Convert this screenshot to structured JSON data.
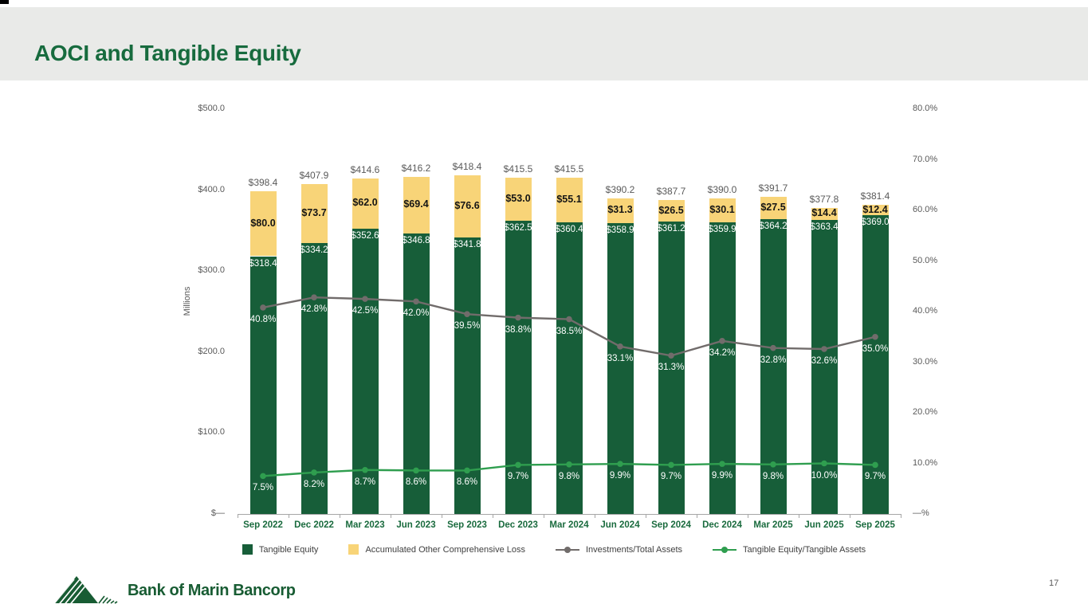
{
  "slide": {
    "title": "AOCI and Tangible Equity",
    "page_number": "17",
    "logo_text": "Bank of Marin Bancorp"
  },
  "colors": {
    "header_bg": "#e9eae8",
    "title_green": "#176b3e",
    "bar_green": "#175e39",
    "bar_yellow": "#f8d478",
    "line_gray": "#716c6b",
    "line_green": "#2f9e4f",
    "axis_text": "#595959",
    "x_label_green": "#1a6b3e"
  },
  "chart_data": {
    "type": "combo: stacked bar (left $ axis) + two lines (right % axis)",
    "categories": [
      "Sep 2022",
      "Dec 2022",
      "Mar 2023",
      "Jun 2023",
      "Sep 2023",
      "Dec 2023",
      "Mar 2024",
      "Jun 2024",
      "Sep 2024",
      "Dec 2024",
      "Mar 2025",
      "Jun 2025",
      "Sep 2025"
    ],
    "series": [
      {
        "name": "Tangible Equity",
        "type": "bar-stack-bottom",
        "axis": "left",
        "color": "#175e39",
        "values": [
          318.4,
          334.2,
          352.6,
          346.8,
          341.8,
          362.5,
          360.4,
          358.9,
          361.2,
          359.9,
          364.2,
          363.4,
          369.0
        ]
      },
      {
        "name": "Accumulated Other Comprehensive Loss",
        "type": "bar-stack-top",
        "axis": "left",
        "color": "#f8d478",
        "values": [
          80.0,
          73.7,
          62.0,
          69.4,
          76.6,
          53.0,
          55.1,
          31.3,
          26.5,
          30.1,
          27.5,
          14.4,
          12.4
        ]
      },
      {
        "name": "Investments/Total Assets",
        "type": "line",
        "axis": "right",
        "color": "#716c6b",
        "values": [
          40.8,
          42.8,
          42.5,
          42.0,
          39.5,
          38.8,
          38.5,
          33.1,
          31.3,
          34.2,
          32.8,
          32.6,
          35.0
        ]
      },
      {
        "name": "Tangible Equity/Tangible Assets",
        "type": "line",
        "axis": "right",
        "color": "#2f9e4f",
        "values": [
          7.5,
          8.2,
          8.7,
          8.6,
          8.6,
          9.7,
          9.8,
          9.9,
          9.7,
          9.9,
          9.8,
          10.0,
          9.7
        ]
      }
    ],
    "stack_totals": [
      398.4,
      407.9,
      414.6,
      416.2,
      418.4,
      415.5,
      415.5,
      390.2,
      387.7,
      390.0,
      391.7,
      377.8,
      381.4
    ],
    "left_axis": {
      "label": "Millions",
      "ticks": [
        "$500.0",
        "$400.0",
        "$300.0",
        "$200.0",
        "$100.0",
        "$—"
      ],
      "tick_values": [
        500,
        400,
        300,
        200,
        100,
        0
      ],
      "range": [
        0,
        500
      ]
    },
    "right_axis": {
      "ticks": [
        "80.0%",
        "70.0%",
        "60.0%",
        "50.0%",
        "40.0%",
        "30.0%",
        "20.0%",
        "10.0%",
        "—%"
      ],
      "tick_values": [
        80,
        70,
        60,
        50,
        40,
        30,
        20,
        10,
        0
      ],
      "range": [
        0,
        80
      ]
    },
    "grid": "off",
    "legend_position": "bottom"
  }
}
